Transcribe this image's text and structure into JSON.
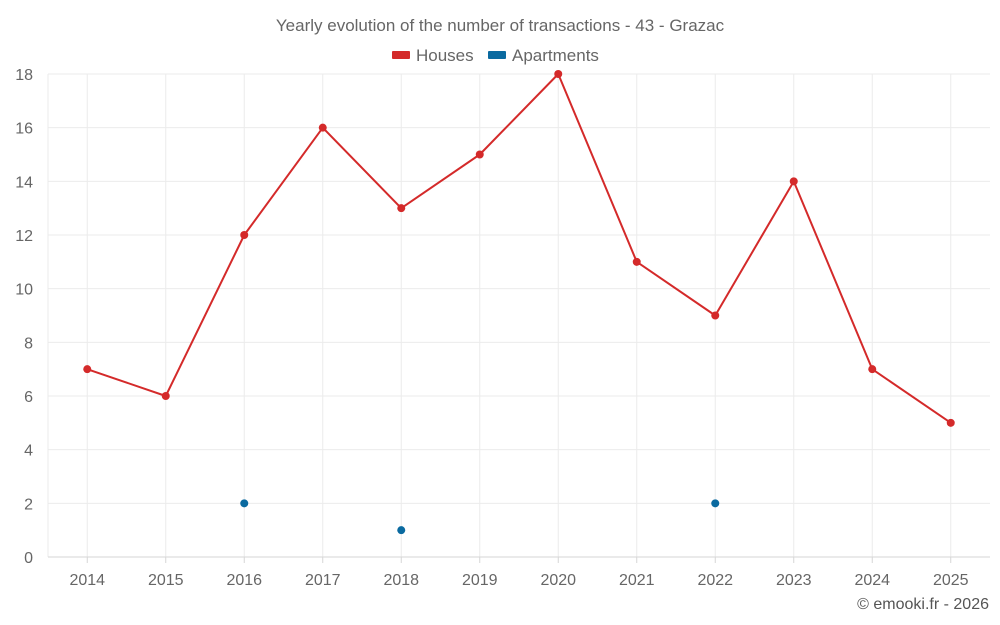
{
  "chart_data": {
    "type": "line",
    "title": "Yearly evolution of the number of transactions - 43 - Grazac",
    "categories": [
      "2014",
      "2015",
      "2016",
      "2017",
      "2018",
      "2019",
      "2020",
      "2021",
      "2022",
      "2023",
      "2024",
      "2025"
    ],
    "series": [
      {
        "name": "Houses",
        "color": "#d42a2a",
        "values": [
          7,
          6,
          12,
          16,
          13,
          15,
          18,
          11,
          9,
          14,
          7,
          5
        ]
      },
      {
        "name": "Apartments",
        "color": "#0a6aa0",
        "values": [
          null,
          null,
          2,
          null,
          1,
          null,
          null,
          null,
          2,
          null,
          null,
          null
        ]
      }
    ],
    "ylim": [
      0,
      18
    ],
    "yticks": [
      0,
      2,
      4,
      6,
      8,
      10,
      12,
      14,
      16,
      18
    ],
    "xlabel": "",
    "ylabel": "",
    "grid": true,
    "legend_position": "top-center"
  },
  "credit": "© emooki.fr - 2026"
}
